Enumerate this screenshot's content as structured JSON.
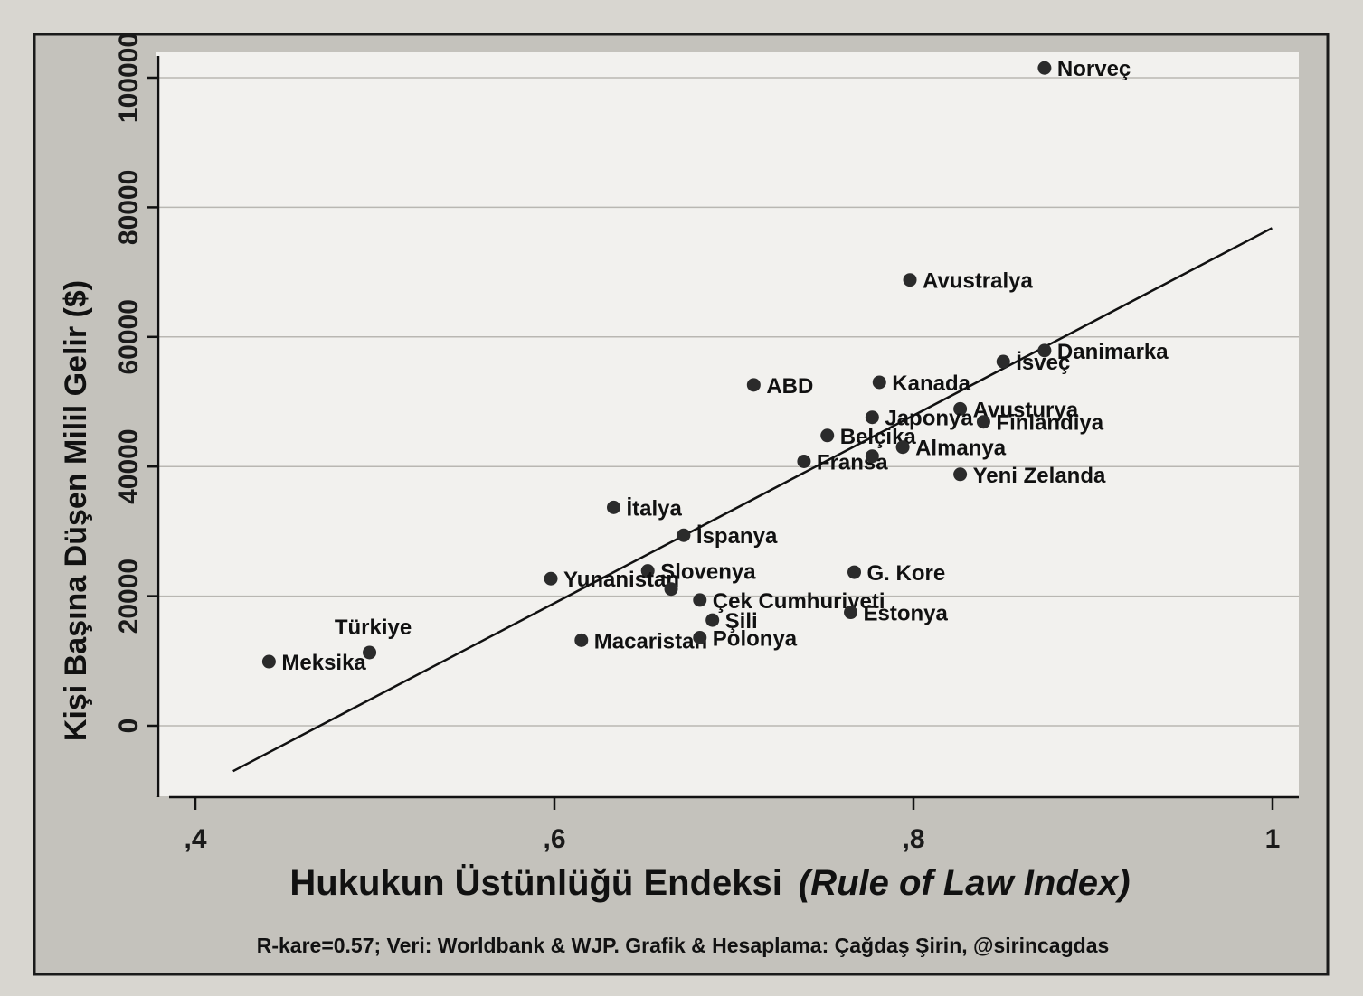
{
  "chart_data": {
    "type": "scatter",
    "xlabel_main": "Hukukun Üstünlüğü Endeksi",
    "xlabel_italic": "(Rule of Law Index)",
    "ylabel": "Kişi Başına Düşen Milil Gelir ($)",
    "caption": "R-kare=0.57; Veri: Worldbank & WJP. Grafik & Hesaplama: Çağdaş Şirin, @sirincagdas",
    "xlim": [
      0.4,
      1.0
    ],
    "ylim": [
      0,
      100000
    ],
    "x_ticks": [
      {
        "value": 0.4,
        "label": ",4"
      },
      {
        "value": 0.6,
        "label": ",6"
      },
      {
        "value": 0.8,
        "label": ",8"
      },
      {
        "value": 1.0,
        "label": "1"
      }
    ],
    "y_ticks": [
      {
        "value": 0,
        "label": "0"
      },
      {
        "value": 20000,
        "label": "20000"
      },
      {
        "value": 40000,
        "label": "40000"
      },
      {
        "value": 60000,
        "label": "60000"
      },
      {
        "value": 80000,
        "label": "80000"
      },
      {
        "value": 100000,
        "label": "100000"
      }
    ],
    "grid": true,
    "colors": {
      "point": "#2b2b2b",
      "line": "#111111",
      "plot_bg": "#f2f1ee",
      "panel_bg": "#c9c7c1"
    },
    "fit_line": {
      "x": [
        0.421,
        0.9997
      ],
      "y": [
        -7000,
        76800
      ]
    },
    "points": [
      {
        "name": "Norveç",
        "x": 0.873,
        "y": 101500
      },
      {
        "name": "Avustralya",
        "x": 0.798,
        "y": 68800
      },
      {
        "name": "Danimarka",
        "x": 0.873,
        "y": 57900
      },
      {
        "name": "İsveç",
        "x": 0.85,
        "y": 56200
      },
      {
        "name": "ABD",
        "x": 0.711,
        "y": 52600
      },
      {
        "name": "Kanada",
        "x": 0.781,
        "y": 53000
      },
      {
        "name": "Avusturya",
        "x": 0.826,
        "y": 48900
      },
      {
        "name": "Japonya",
        "x": 0.777,
        "y": 47600
      },
      {
        "name": "Finlandiya",
        "x": 0.839,
        "y": 46900
      },
      {
        "name": "Belçika",
        "x": 0.752,
        "y": 44800
      },
      {
        "name": "Almanya",
        "x": 0.794,
        "y": 43000
      },
      {
        "name": "Fransa",
        "x": 0.739,
        "y": 40800
      },
      {
        "name": "",
        "x": 0.777,
        "y": 41600
      },
      {
        "name": "Yeni Zelanda",
        "x": 0.826,
        "y": 38800
      },
      {
        "name": "İtalya",
        "x": 0.633,
        "y": 33700
      },
      {
        "name": "İspanya",
        "x": 0.672,
        "y": 29400
      },
      {
        "name": "G. Kore",
        "x": 0.767,
        "y": 23700
      },
      {
        "name": "Slovenya",
        "x": 0.652,
        "y": 23900
      },
      {
        "name": "Yunanistan",
        "x": 0.598,
        "y": 22700
      },
      {
        "name": "",
        "x": 0.665,
        "y": 21100
      },
      {
        "name": "Çek Cumhuriyeti",
        "x": 0.681,
        "y": 19400
      },
      {
        "name": "Estonya",
        "x": 0.765,
        "y": 17500
      },
      {
        "name": "Şili",
        "x": 0.688,
        "y": 16300
      },
      {
        "name": "Macaristan",
        "x": 0.615,
        "y": 13200
      },
      {
        "name": "Polonya",
        "x": 0.681,
        "y": 13600
      },
      {
        "name": "Türkiye",
        "x": 0.497,
        "y": 11300
      },
      {
        "name": "Meksika",
        "x": 0.441,
        "y": 9900
      }
    ]
  }
}
